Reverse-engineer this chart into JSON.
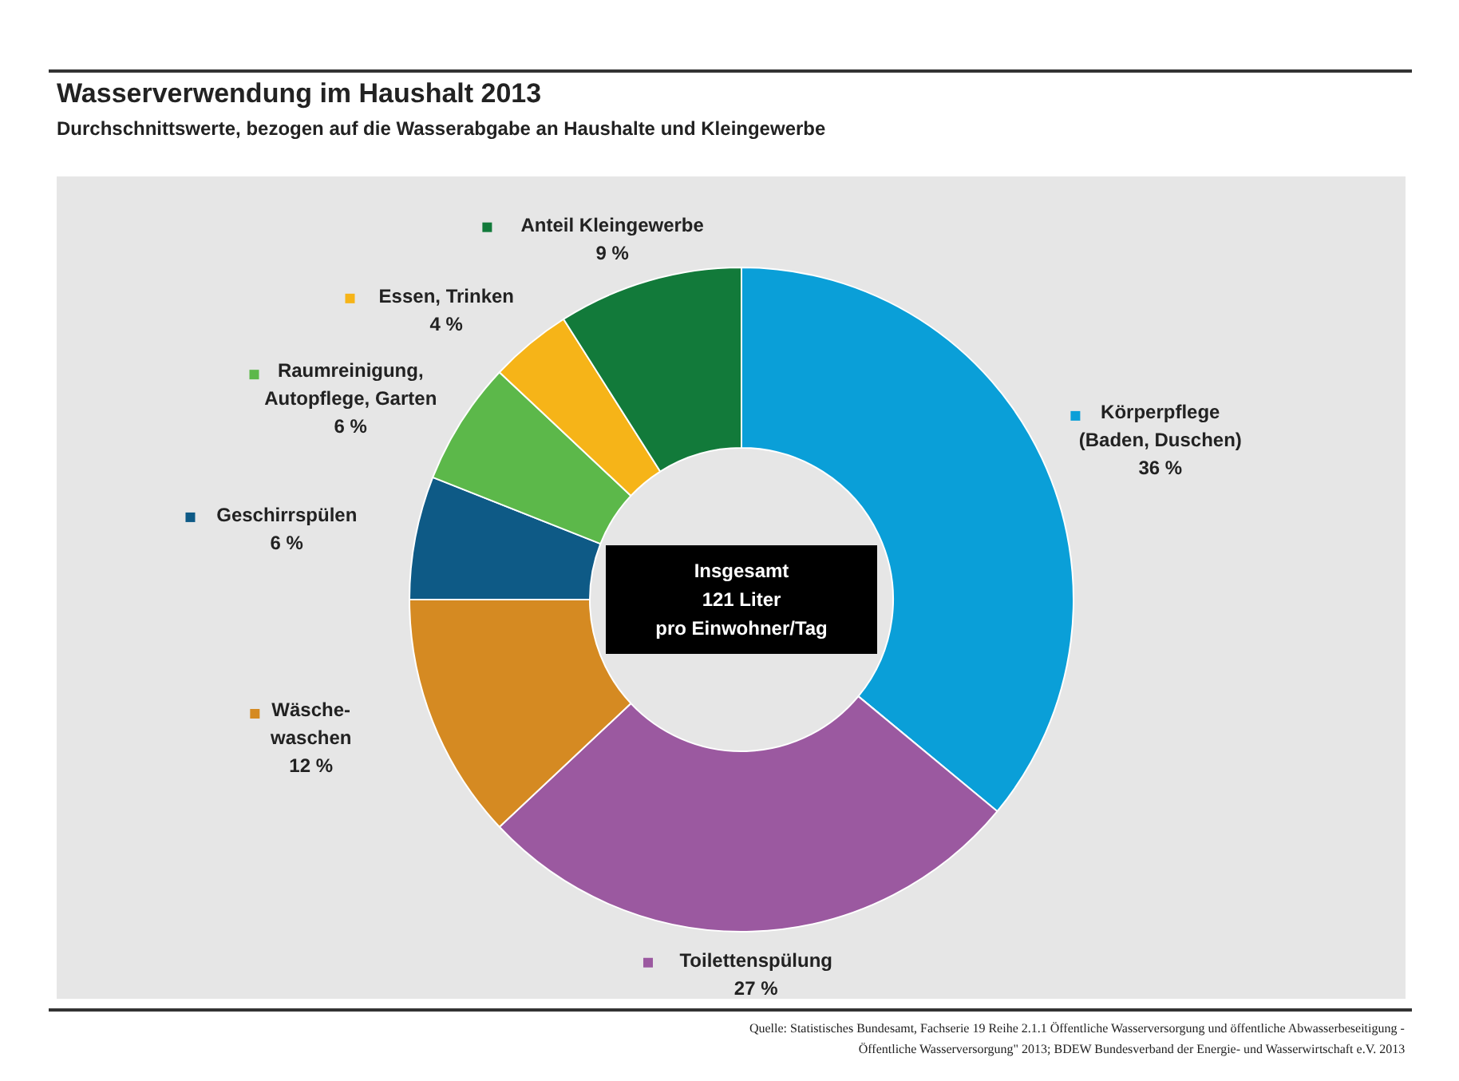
{
  "chart_data": {
    "type": "donut",
    "title": "Wasserverwendung im Haushalt 2013",
    "subtitle": "Durchschnittswerte, bezogen auf die Wasserabgabe an Haushalte und Kleingewerbe",
    "categories": [
      "Körperpflege\n(Baden, Duschen)",
      "Toilettenspülung",
      "Wäsche-\nwaschen",
      "Geschirrspülen",
      "Raumreinigung,\nAutopflege, Garten",
      "Essen, Trinken",
      "Anteil Kleingewerbe"
    ],
    "values": [
      36,
      27,
      12,
      6,
      6,
      4,
      9
    ],
    "value_labels": [
      "36 %",
      "27 %",
      "12 %",
      "6 %",
      "6 %",
      "4 %",
      "9 %"
    ],
    "colors": [
      "#0a9fd8",
      "#9b59a0",
      "#d58a22",
      "#0e5a86",
      "#5cb84a",
      "#f6b418",
      "#127a3a"
    ],
    "annotations": [
      "Insgesamt\n121 Liter\npro Einwohner/Tag",
      "Quelle: Statistisches Bundesamt, Fachserie 19 Reihe 2.1.1 Öffentliche Wasserversorgung und öffentliche Abwasserbeseitigung -\nÖffentliche Wasserversorgung\" 2013; BDEW Bundesverband der Energie- und Wasserwirtschaft e.V. 2013"
    ],
    "legend": "left"
  }
}
